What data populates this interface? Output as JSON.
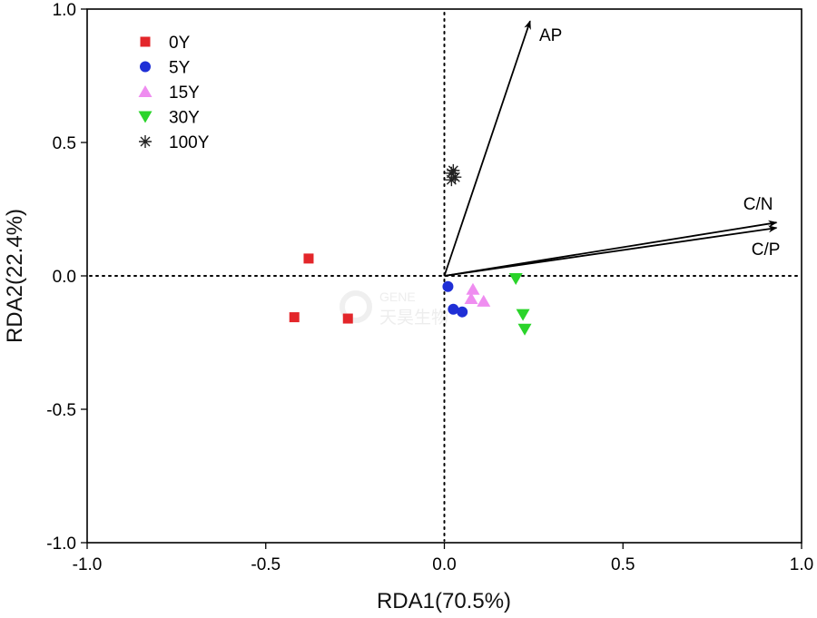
{
  "chart_data": {
    "type": "scatter",
    "xlabel": "RDA1(70.5%)",
    "ylabel": "RDA2(22.4%)",
    "xlim": [
      -1.0,
      1.0
    ],
    "ylim": [
      -1.0,
      1.0
    ],
    "xticks": [
      "-1.0",
      "-0.5",
      "0.0",
      "0.5",
      "1.0"
    ],
    "yticks": [
      "1.0",
      "0.5",
      "0.0",
      "-0.5",
      "-1.0"
    ],
    "grid": false,
    "legend_position": "top-left",
    "series": [
      {
        "name": "0Y",
        "marker": "square",
        "color": "#e3262a",
        "points": [
          [
            -0.38,
            0.065
          ],
          [
            -0.42,
            -0.155
          ],
          [
            -0.27,
            -0.16
          ]
        ]
      },
      {
        "name": "5Y",
        "marker": "circle",
        "color": "#1f2fd6",
        "points": [
          [
            0.01,
            -0.04
          ],
          [
            0.025,
            -0.125
          ],
          [
            0.05,
            -0.135
          ]
        ]
      },
      {
        "name": "15Y",
        "marker": "triangle-up",
        "color": "#ef8df0",
        "points": [
          [
            0.08,
            -0.05
          ],
          [
            0.075,
            -0.085
          ],
          [
            0.11,
            -0.095
          ]
        ]
      },
      {
        "name": "30Y",
        "marker": "triangle-down",
        "color": "#2ad42a",
        "points": [
          [
            0.2,
            -0.01
          ],
          [
            0.22,
            -0.145
          ],
          [
            0.225,
            -0.2
          ]
        ]
      },
      {
        "name": "100Y",
        "marker": "star",
        "color": "#222222",
        "points": [
          [
            0.025,
            0.395
          ],
          [
            0.02,
            0.385
          ],
          [
            0.03,
            0.37
          ],
          [
            0.02,
            0.36
          ]
        ]
      }
    ],
    "vectors": [
      {
        "name": "AP",
        "x": 0.24,
        "y": 0.955
      },
      {
        "name": "C/N",
        "x": 0.93,
        "y": 0.2
      },
      {
        "name": "C/P",
        "x": 0.93,
        "y": 0.18
      }
    ],
    "watermark": {
      "line1": "GENE",
      "line2": "天昊生物"
    }
  }
}
